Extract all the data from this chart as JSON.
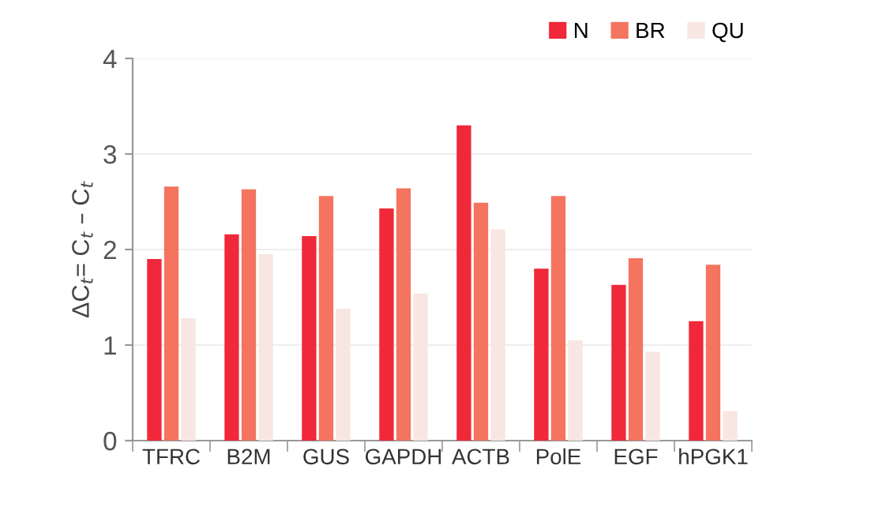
{
  "chart_data": {
    "type": "bar",
    "ylabel": "ΔC$_{t}$= C$_{t}$ – C$_{t}$",
    "categories": [
      "TFRC",
      "B2M",
      "GUS",
      "GAPDH",
      "ACTB",
      "PolE",
      "EGF",
      "hPGK1"
    ],
    "series": [
      {
        "name": "N",
        "color": "#f0283a",
        "values": [
          1.9,
          2.16,
          2.14,
          2.43,
          3.3,
          1.8,
          1.63,
          1.25
        ]
      },
      {
        "name": "BR",
        "color": "#f47460",
        "values": [
          2.66,
          2.63,
          2.56,
          2.64,
          2.49,
          2.56,
          1.91,
          1.84
        ]
      },
      {
        "name": "QU",
        "color": "#f8e6e2",
        "values": [
          1.28,
          1.95,
          1.38,
          1.54,
          2.21,
          1.05,
          0.93,
          0.31
        ]
      }
    ],
    "ylim": [
      0,
      4
    ],
    "yticks": [
      0,
      1,
      2,
      3,
      4
    ],
    "grid": "y",
    "legend": "top right"
  }
}
